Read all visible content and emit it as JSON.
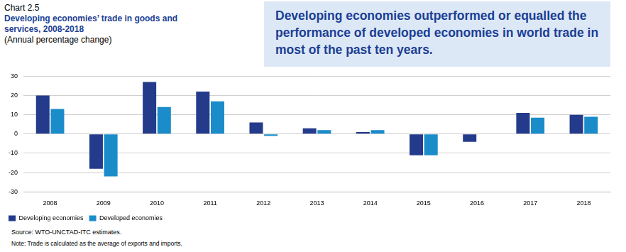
{
  "chart_data": {
    "type": "bar",
    "heading": "Chart 2.5",
    "title": "Developing economies’ trade in goods and services, 2008-2018",
    "subtitle": "(Annual percentage change)",
    "annotations": [
      "Developing economies outperformed or equalled the performance of developed economies in world trade in most of the past ten years."
    ],
    "source": "Source: WTO-UNCTAD-ITC estimates.",
    "note": "Note: Trade is calculated as the average of exports and imports.",
    "categories": [
      "2008",
      "2009",
      "2010",
      "2011",
      "2012",
      "2013",
      "2014",
      "2015",
      "2016",
      "2017",
      "2018"
    ],
    "series": [
      {
        "name": "Developing economies",
        "color": "#243b8c",
        "values": [
          20,
          -18,
          27,
          22,
          6,
          3,
          1,
          -11,
          -4,
          11,
          10
        ]
      },
      {
        "name": "Developed economies",
        "color": "#1b8cca",
        "values": [
          13,
          -22,
          14,
          17,
          -1,
          2,
          2,
          -11,
          0,
          8.5,
          9
        ]
      }
    ],
    "ylim": [
      -30,
      30
    ],
    "yticks": [
      -30,
      -20,
      -10,
      0,
      10,
      20,
      30
    ],
    "grid": true,
    "legend": "bottom-left",
    "data_labels": false
  }
}
